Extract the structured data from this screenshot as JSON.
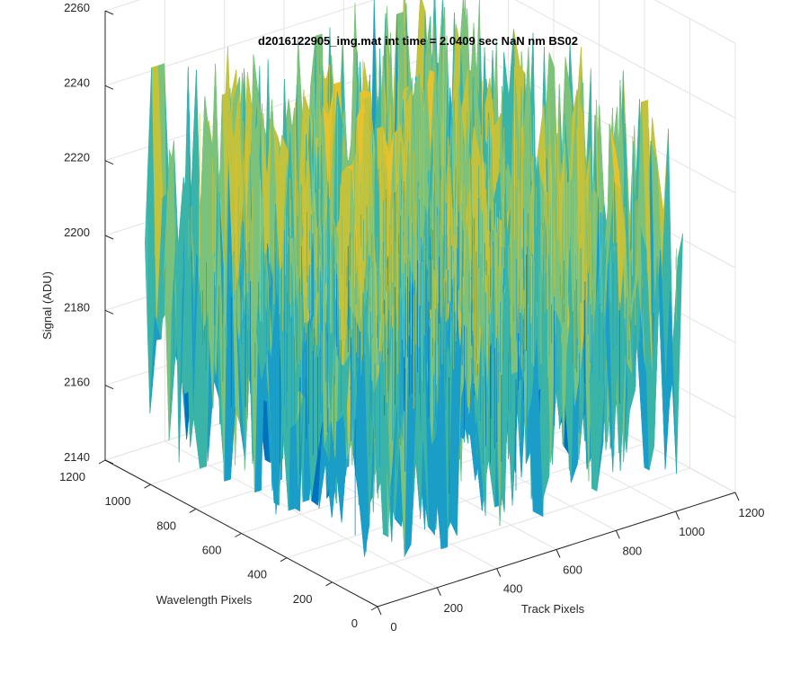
{
  "chart_data": {
    "type": "surface",
    "title": "d2016122905_img.mat int time = 2.0409 sec  NaN nm BS02",
    "xlabel": "Track Pixels",
    "ylabel": "Wavelength Pixels",
    "zlabel": "Signal (ADU)",
    "xlim": [
      0,
      1200
    ],
    "ylim": [
      0,
      1200
    ],
    "zlim": [
      2140,
      2260
    ],
    "x_ticks": [
      0,
      200,
      400,
      600,
      800,
      1000,
      1200
    ],
    "y_ticks": [
      0,
      200,
      400,
      600,
      800,
      1000,
      1200
    ],
    "z_ticks": [
      2140,
      2160,
      2180,
      2200,
      2220,
      2240,
      2260
    ],
    "x_tick_labels": [
      "0",
      "200",
      "400",
      "600",
      "800",
      "1000",
      "1200"
    ],
    "y_tick_labels": [
      "0",
      "200",
      "400",
      "600",
      "800",
      "1000",
      "1200"
    ],
    "z_tick_labels": [
      "2140",
      "2160",
      "2180",
      "2200",
      "2220",
      "2240",
      "2260"
    ],
    "surface_extent": {
      "x": [
        0,
        1024
      ],
      "y": [
        0,
        1024
      ]
    },
    "signal_mean": 2195,
    "signal_min": 2150,
    "signal_max": 2250,
    "grid": true,
    "colormap": [
      "#0072BD",
      "#1A9EC8",
      "#3BB4A8",
      "#7CC27A",
      "#C2C23C",
      "#E5C22E"
    ]
  }
}
